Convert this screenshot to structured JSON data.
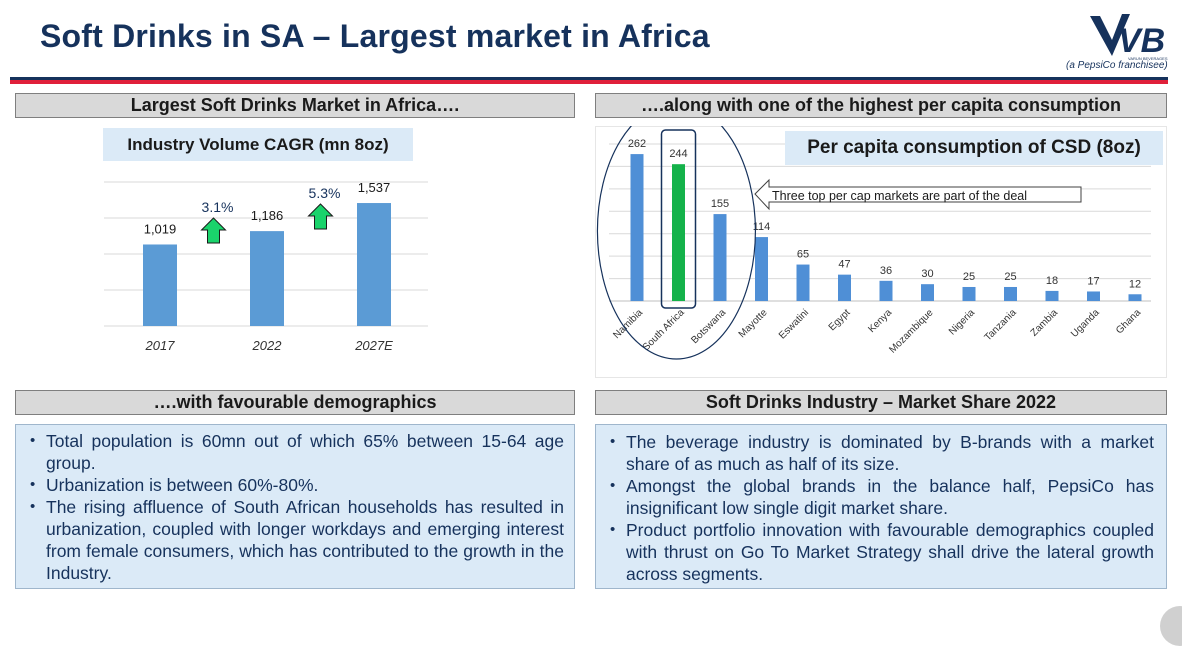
{
  "page": {
    "title": "Soft Drinks in SA – Largest market in Africa",
    "logo_text": "VB",
    "logo_small_text": "VARUN BEVERAGES",
    "logo_sub": "(a PepsiCo franchisee)"
  },
  "sections": {
    "top_left_header": "Largest Soft Drinks Market in Africa….",
    "top_right_header": "….along with one of the highest per capita consumption",
    "bottom_left_header": "….with favourable demographics",
    "bottom_right_header": "Soft Drinks Industry –  Market Share 2022"
  },
  "chart_data": [
    {
      "type": "bar",
      "title": "Industry Volume CAGR (mn 8oz)",
      "categories": [
        "2017",
        "2022",
        "2027E"
      ],
      "values": [
        1019,
        1186,
        1537
      ],
      "value_labels": [
        "1,019",
        "1,186",
        "1,537"
      ],
      "annotations": [
        {
          "label": "3.1%",
          "between": [
            "2017",
            "2022"
          ],
          "icon": "up-arrow"
        },
        {
          "label": "5.3%",
          "between": [
            "2022",
            "2027E"
          ],
          "icon": "up-arrow"
        }
      ],
      "ylim": [
        0,
        1800
      ],
      "grid": true,
      "colors": {
        "bar": "#5b9bd5",
        "arrow": "#1ad36b",
        "value_text": "#1a1a1a",
        "cagr_text": "#16325c"
      }
    },
    {
      "type": "bar",
      "title": "Per capita consumption of CSD (8oz)",
      "categories": [
        "Namibia",
        "South Africa",
        "Botswana",
        "Mayotte",
        "Eswatini",
        "Egypt",
        "Kenya",
        "Mozambique",
        "Nigeria",
        "Tanzania",
        "Zambia",
        "Uganda",
        "Ghana"
      ],
      "values": [
        262,
        244,
        155,
        114,
        65,
        47,
        36,
        30,
        25,
        25,
        18,
        17,
        12
      ],
      "highlight": "South Africa",
      "ylim": [
        0,
        280
      ],
      "grid": true,
      "annotation": "Three top per cap markets are part of the deal",
      "colors": {
        "bar": "#4f8fd6",
        "highlight": "#14b24a",
        "circle": "#16325c"
      }
    }
  ],
  "demographics": {
    "bullets": [
      "Total population is 60mn out of which 65% between 15-64 age group.",
      "Urbanization is between 60%-80%.",
      "The rising affluence of South African households has resulted in urbanization, coupled with longer workdays and emerging interest from female consumers, which has contributed to the growth in the Industry."
    ]
  },
  "market_share": {
    "bullets": [
      "The beverage industry is dominated by B-brands with a market share of as much as half of its size.",
      "Amongst the global brands in the balance half, PepsiCo has insignificant low single digit market share.",
      "Product portfolio innovation with favourable demographics coupled with thrust on Go To Market Strategy shall drive the lateral growth across segments."
    ]
  }
}
